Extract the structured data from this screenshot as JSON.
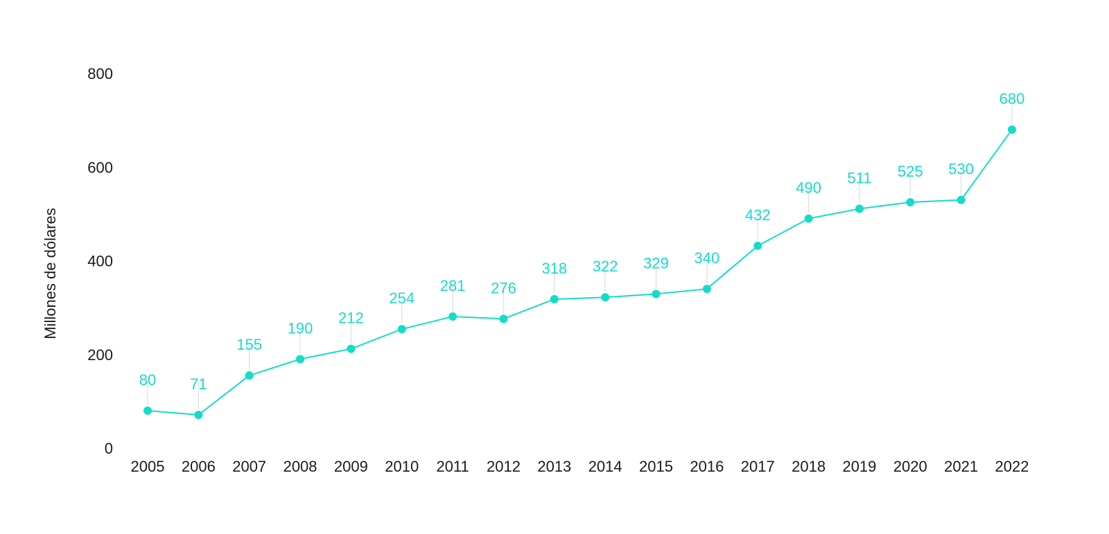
{
  "chart_data": {
    "type": "line",
    "title": "",
    "xlabel": "",
    "ylabel": "Millones de dólares",
    "categories": [
      "2005",
      "2006",
      "2007",
      "2008",
      "2009",
      "2010",
      "2011",
      "2012",
      "2013",
      "2014",
      "2015",
      "2016",
      "2017",
      "2018",
      "2019",
      "2020",
      "2021",
      "2022"
    ],
    "series": [
      {
        "values": [
          80,
          71,
          155,
          190,
          212,
          254,
          281,
          276,
          318,
          322,
          329,
          340,
          432,
          490,
          511,
          525,
          530,
          680
        ],
        "color": "#14dcc8"
      }
    ],
    "ylim": [
      0,
      800
    ],
    "yticks": [
      "0",
      "200",
      "400",
      "600",
      "800"
    ],
    "grid": false,
    "legend": "none",
    "data_labels": true
  }
}
